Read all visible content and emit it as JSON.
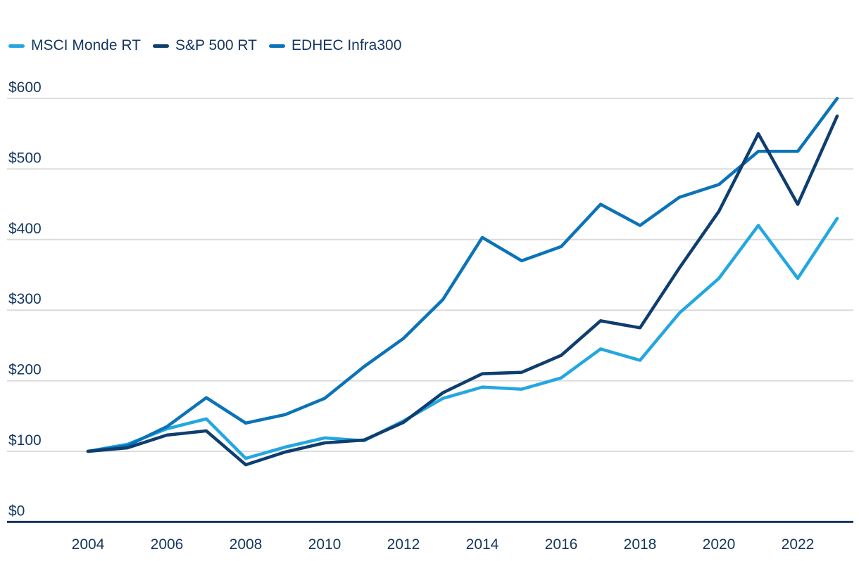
{
  "chart": {
    "legend_items": [
      {
        "label": "MSCI Monde RT",
        "color": "#24A7E0"
      },
      {
        "label": "S&P 500 RT",
        "color": "#0E3E6F"
      },
      {
        "label": "EDHEC Infra300",
        "color": "#0B73B8"
      }
    ],
    "text_color": "#14365F",
    "gridline_color": "#DBDBDB",
    "axis_color": "#14365F",
    "background_color": "#FFFFFF"
  },
  "chart_data": {
    "type": "line",
    "title": "",
    "xlabel": "",
    "ylabel": "",
    "grid": "horizontal",
    "legend_position": "top-left",
    "currency_prefix": "$",
    "x": [
      2004,
      2005,
      2006,
      2007,
      2008,
      2009,
      2010,
      2011,
      2012,
      2013,
      2014,
      2015,
      2016,
      2017,
      2018,
      2019,
      2020,
      2021,
      2022,
      2023
    ],
    "x_tick_labels": [
      "2004",
      "2006",
      "2008",
      "2010",
      "2012",
      "2014",
      "2016",
      "2018",
      "2020",
      "2022"
    ],
    "y_ticks": [
      0,
      100,
      200,
      300,
      400,
      500,
      600
    ],
    "y_tick_labels": [
      "$0",
      "$100",
      "$200",
      "$300",
      "$400",
      "$500",
      "$600"
    ],
    "xlim": [
      2004,
      2023
    ],
    "ylim": [
      0,
      620
    ],
    "series": [
      {
        "name": "MSCI Monde RT",
        "color": "#24A7E0",
        "values": [
          100,
          110,
          132,
          146,
          90,
          106,
          119,
          115,
          143,
          175,
          191,
          188,
          204,
          245,
          229,
          296,
          345,
          420,
          345,
          430
        ]
      },
      {
        "name": "S&P 500 RT",
        "color": "#0E3E6F",
        "values": [
          100,
          105,
          123,
          129,
          81,
          99,
          112,
          116,
          141,
          183,
          210,
          212,
          236,
          285,
          275,
          360,
          440,
          550,
          450,
          575
        ]
      },
      {
        "name": "EDHEC Infra300",
        "color": "#0B73B8",
        "values": [
          100,
          108,
          135,
          176,
          140,
          152,
          175,
          220,
          260,
          315,
          403,
          370,
          390,
          450,
          420,
          460,
          478,
          525,
          525,
          600
        ]
      }
    ]
  }
}
